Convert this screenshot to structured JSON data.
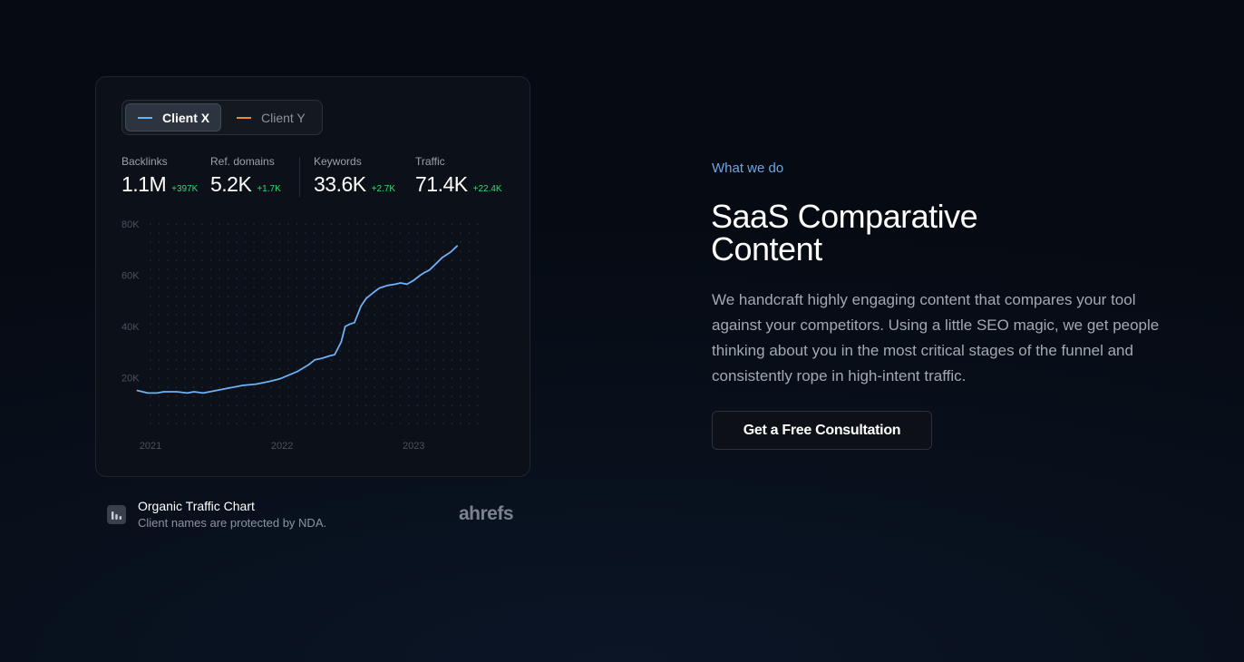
{
  "card": {
    "toggle": [
      {
        "label": "Client X",
        "color": "#6fb0f5",
        "active": true
      },
      {
        "label": "Client Y",
        "color": "#f08a24",
        "active": false
      }
    ],
    "metrics": [
      {
        "label": "Backlinks",
        "value": "1.1M",
        "delta": "+397K"
      },
      {
        "label": "Ref. domains",
        "value": "5.2K",
        "delta": "+1.7K"
      },
      {
        "label": "Keywords",
        "value": "33.6K",
        "delta": "+2.7K"
      },
      {
        "label": "Traffic",
        "value": "71.4K",
        "delta": "+22.4K"
      }
    ]
  },
  "chart_data": {
    "type": "line",
    "title": "",
    "xlabel": "",
    "ylabel": "",
    "ylim": [
      0,
      80000
    ],
    "xlim": [
      2021,
      2023.55
    ],
    "yticks": [
      "80K",
      "60K",
      "40K",
      "20K"
    ],
    "ytick_values": [
      80000,
      60000,
      40000,
      20000
    ],
    "xticks": [
      "2021",
      "2022",
      "2023"
    ],
    "xtick_values": [
      2021,
      2022,
      2023
    ],
    "grid": true,
    "series": [
      {
        "color": "#6fb0f5",
        "x": [
          2020.9,
          2020.98,
          2021.05,
          2021.1,
          2021.2,
          2021.28,
          2021.33,
          2021.4,
          2021.45,
          2021.5,
          2021.6,
          2021.7,
          2021.8,
          2021.9,
          2021.98,
          2022.05,
          2022.12,
          2022.2,
          2022.25,
          2022.3,
          2022.33,
          2022.36,
          2022.4,
          2022.45,
          2022.48,
          2022.52,
          2022.55,
          2022.6,
          2022.64,
          2022.7,
          2022.74,
          2022.8,
          2022.86,
          2022.9,
          2022.95,
          2023.0,
          2023.05,
          2023.08,
          2023.1,
          2023.12,
          2023.16,
          2023.22,
          2023.28,
          2023.33
        ],
        "y": [
          15000,
          14000,
          14000,
          14500,
          14500,
          14000,
          14500,
          14000,
          14500,
          15000,
          16000,
          17000,
          17500,
          18500,
          19500,
          21000,
          22500,
          25000,
          27000,
          27500,
          28000,
          28500,
          29000,
          34000,
          40000,
          41000,
          41500,
          48000,
          51000,
          53500,
          55000,
          56000,
          56500,
          57000,
          56500,
          58000,
          60000,
          61000,
          61500,
          62000,
          64000,
          67000,
          69000,
          71400
        ]
      }
    ]
  },
  "footer": {
    "title": "Organic Traffic Chart",
    "subtitle": "Client names are protected by NDA.",
    "logo": "ahrefs"
  },
  "right": {
    "eyebrow": "What we do",
    "headline": "SaaS Comparative Content",
    "body": "We handcraft highly engaging content that compares your tool against your competitors. Using a little SEO magic, we get people thinking about you in the most critical stages of the funnel and consistently rope in high-intent traffic.",
    "cta": "Get a Free Consultation"
  }
}
